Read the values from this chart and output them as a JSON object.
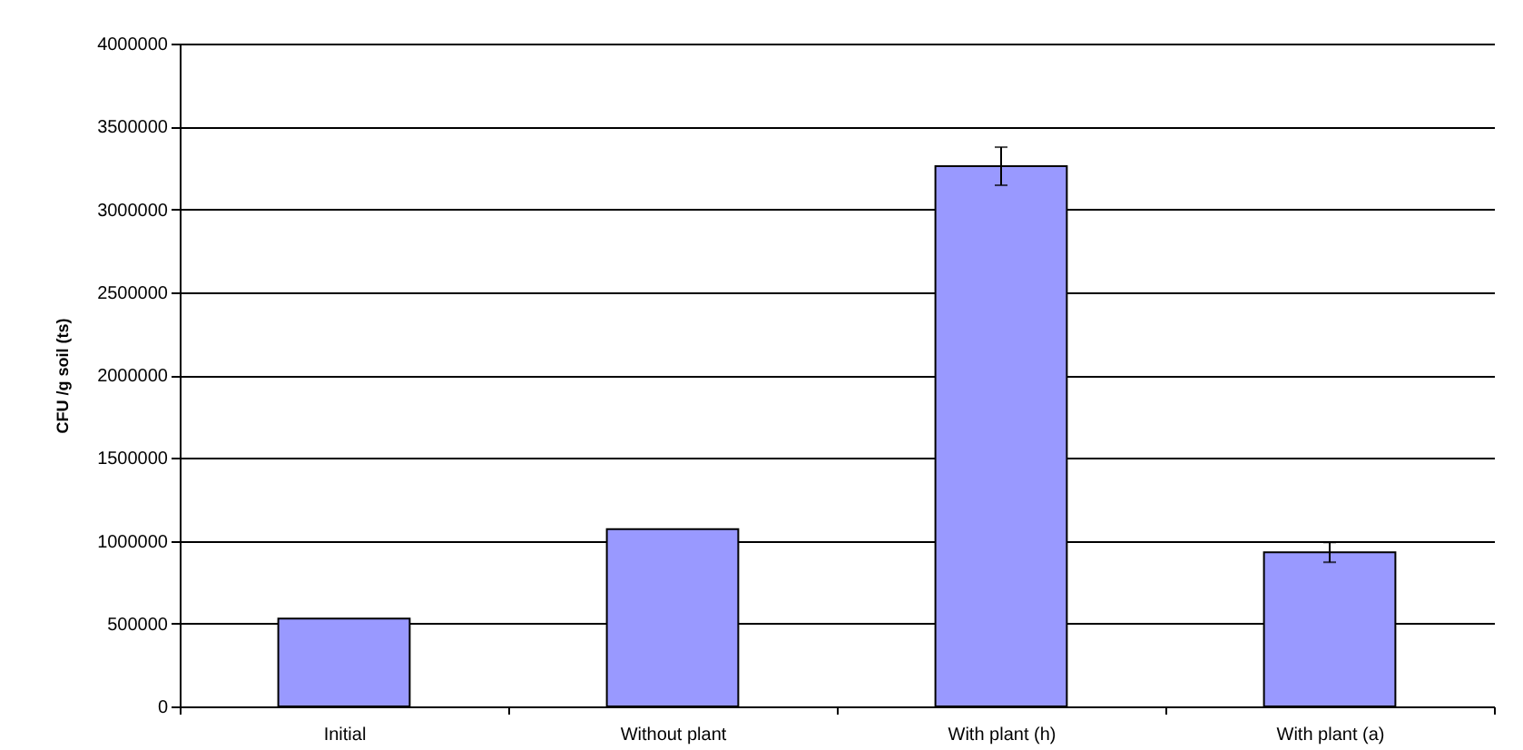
{
  "chart_data": {
    "type": "bar",
    "ylabel": "CFU /g soil (ts)",
    "categories": [
      "Initial",
      "Without plant",
      "With plant (h)",
      "With plant (a)"
    ],
    "values": [
      530000,
      1070000,
      3260000,
      930000
    ],
    "errors": [
      null,
      null,
      115000,
      60000
    ],
    "color": "#9999ff",
    "ylim": [
      0,
      4000000
    ],
    "yticks": [
      0,
      500000,
      1000000,
      1500000,
      2000000,
      2500000,
      3000000,
      3500000,
      4000000
    ],
    "grid": "y"
  }
}
